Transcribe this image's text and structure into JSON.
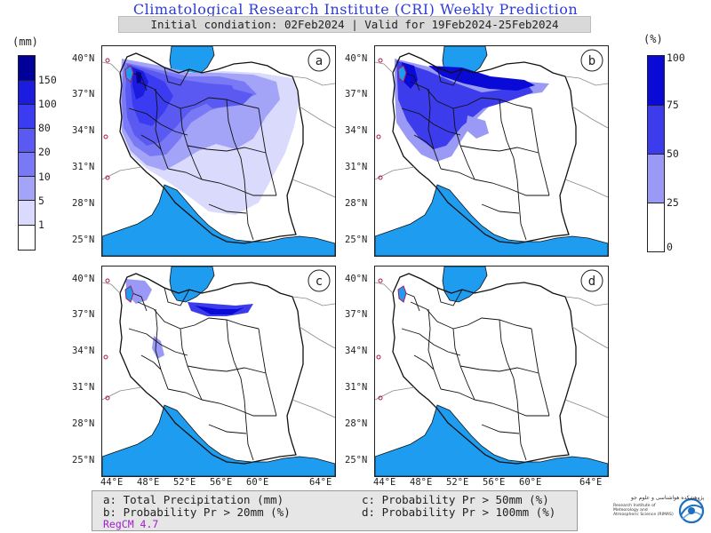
{
  "title": "Climatological Research Institute (CRI) Weekly Prediction",
  "subtitle": "Initial condiation: 02Feb2024 | Valid for 19Feb2024-25Feb2024",
  "left_colorbar": {
    "unit": "(mm)",
    "levels": [
      "150",
      "100",
      "80",
      "20",
      "10",
      "5",
      "1"
    ],
    "colors": [
      "#01019a",
      "#1c1ce0",
      "#3b3bf2",
      "#5a5af3",
      "#7979f5",
      "#a3a3f8",
      "#dadafc",
      "#ffffff"
    ]
  },
  "right_colorbar": {
    "unit": "(%)",
    "levels": [
      "100",
      "75",
      "50",
      "25",
      "0"
    ],
    "colors": [
      "#0a0ad6",
      "#3c3cec",
      "#9a9af6",
      "#ffffff"
    ]
  },
  "panels": [
    {
      "letter": "a"
    },
    {
      "letter": "b"
    },
    {
      "letter": "c"
    },
    {
      "letter": "d"
    }
  ],
  "lat_labels": [
    "40°N",
    "37°N",
    "34°N",
    "31°N",
    "28°N",
    "25°N"
  ],
  "lon_labels": [
    "44°E",
    "48°E",
    "52°E",
    "56°E",
    "60°E",
    "64°E"
  ],
  "legend": {
    "a": "a: Total Precipitation (mm)",
    "b": "b: Probability Pr > 20mm (%)",
    "c": "c: Probability Pr > 50mm (%)",
    "d": "d: Probability Pr > 100mm (%)",
    "model": "RegCM 4.7"
  },
  "logo": {
    "fa": "پژوهشکده هواشناسی و علوم جو",
    "en": "Research Institute of Meteorology and Atmospheric Science (RIMAS)"
  },
  "colors": {
    "sea": "#1e9cf0",
    "border": "#111111",
    "land": "#ffffff",
    "lake_edge": "#b0165a"
  }
}
